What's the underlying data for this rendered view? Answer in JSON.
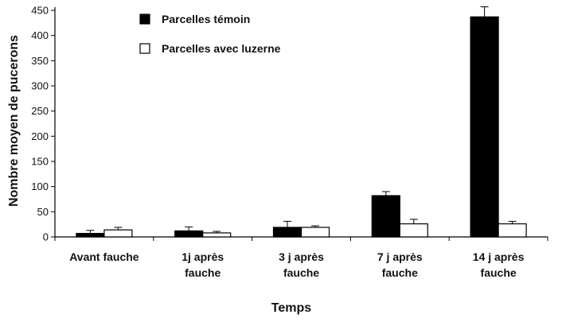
{
  "chart_data": {
    "type": "bar",
    "title": "",
    "xlabel": "Temps",
    "ylabel": "Nombre moyen de pucerons",
    "ylim": [
      0,
      450
    ],
    "yticks": [
      0,
      50,
      100,
      150,
      200,
      250,
      300,
      350,
      400,
      450
    ],
    "categories": [
      [
        "Avant fauche"
      ],
      [
        "1j après",
        "fauche"
      ],
      [
        "3 j après",
        "fauche"
      ],
      [
        "7 j après",
        "fauche"
      ],
      [
        "14 j après",
        "fauche"
      ]
    ],
    "series": [
      {
        "name": "Parcelles témoin",
        "color": "#000000",
        "values": [
          7,
          12,
          19,
          82,
          437
        ],
        "errors": [
          6,
          8,
          12,
          8,
          20
        ]
      },
      {
        "name": "Parcelles avec luzerne",
        "color": "#ffffff",
        "values": [
          14,
          8,
          19,
          26,
          26
        ],
        "errors": [
          5,
          3,
          3,
          9,
          5
        ]
      }
    ],
    "legend": "top-left",
    "grid": false
  }
}
